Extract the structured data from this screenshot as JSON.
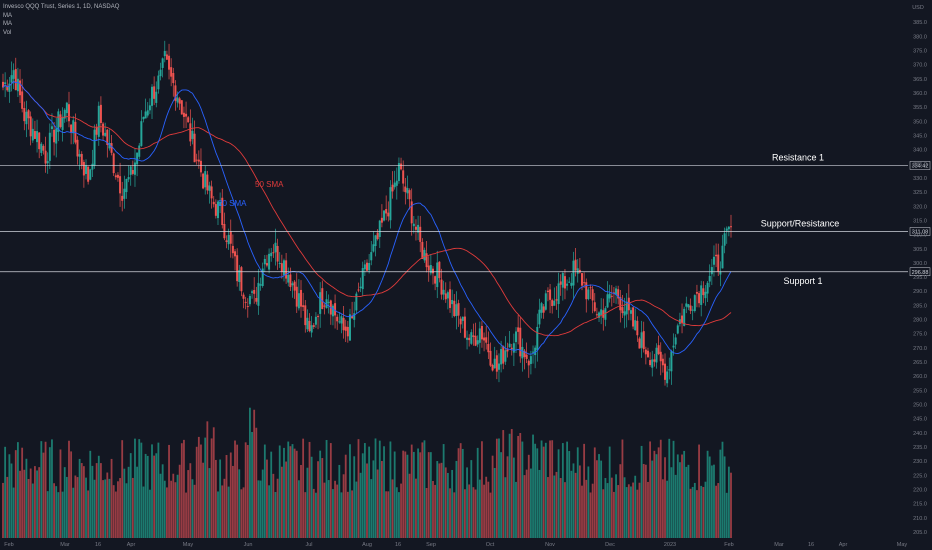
{
  "legend": {
    "title": "Invesco QQQ Trust, Series 1, 1D, NASDAQ",
    "indicators": [
      "MA",
      "MA",
      "Vol"
    ]
  },
  "currency": "USD",
  "colors": {
    "background": "#131722",
    "up": "#26a69a",
    "down": "#ef5350",
    "vol_up": "#1e8c7c",
    "vol_down": "#b0434a",
    "sma20": "#2962ff",
    "sma50": "#e03b3b",
    "level_line": "#d1d4dc",
    "axis_text": "#787b86"
  },
  "chart_data": {
    "type": "candlestick",
    "ylim": [
      205,
      390
    ],
    "y_ticks": [
      205,
      210,
      215,
      220,
      225,
      230,
      235,
      240,
      245,
      250,
      255,
      260,
      265,
      270,
      275,
      280,
      285,
      290,
      295,
      300,
      305,
      310,
      315,
      320,
      325,
      330,
      335,
      340,
      345,
      350,
      355,
      360,
      365,
      370,
      375,
      380,
      385
    ],
    "x_ticks": [
      "Feb",
      "Mar",
      "16",
      "Apr",
      "May",
      "Jun",
      "Jul",
      "Aug",
      "16",
      "Sep",
      "Oct",
      "Nov",
      "Dec",
      "2023",
      "Feb",
      "Mar",
      "16",
      "Apr",
      "May"
    ],
    "levels": [
      {
        "label": "Resistance 1",
        "price": 334.42,
        "tag": "334.42"
      },
      {
        "label": "Support/Resistance",
        "price": 311.08,
        "tag": "311.08"
      },
      {
        "label": "Support 1",
        "price": 296.88,
        "tag": "296.88"
      }
    ],
    "series_labels": [
      {
        "name": "50 SMA",
        "color_key": "sma50"
      },
      {
        "name": "20 SMA",
        "color_key": "sma20"
      }
    ],
    "close_path": [
      [
        0,
        362
      ],
      [
        5,
        368
      ],
      [
        10,
        352
      ],
      [
        16,
        345
      ],
      [
        20,
        338
      ],
      [
        25,
        348
      ],
      [
        30,
        355
      ],
      [
        35,
        340
      ],
      [
        40,
        330
      ],
      [
        45,
        352
      ],
      [
        48,
        345
      ],
      [
        52,
        335
      ],
      [
        56,
        326
      ],
      [
        60,
        330
      ],
      [
        64,
        342
      ],
      [
        66,
        352
      ],
      [
        70,
        360
      ],
      [
        74,
        365
      ],
      [
        76,
        371
      ],
      [
        78,
        366
      ],
      [
        82,
        360
      ],
      [
        86,
        350
      ],
      [
        90,
        340
      ],
      [
        94,
        330
      ],
      [
        98,
        322
      ],
      [
        102,
        318
      ],
      [
        106,
        308
      ],
      [
        110,
        296
      ],
      [
        114,
        290
      ],
      [
        118,
        286
      ],
      [
        122,
        300
      ],
      [
        126,
        306
      ],
      [
        130,
        303
      ],
      [
        135,
        295
      ],
      [
        140,
        285
      ],
      [
        144,
        274
      ],
      [
        148,
        285
      ],
      [
        152,
        290
      ],
      [
        156,
        282
      ],
      [
        160,
        276
      ],
      [
        164,
        279
      ],
      [
        168,
        292
      ],
      [
        172,
        300
      ],
      [
        176,
        308
      ],
      [
        180,
        318
      ],
      [
        184,
        327
      ],
      [
        186,
        333
      ],
      [
        188,
        328
      ],
      [
        192,
        318
      ],
      [
        196,
        306
      ],
      [
        200,
        300
      ],
      [
        204,
        296
      ],
      [
        208,
        290
      ],
      [
        212,
        283
      ],
      [
        216,
        278
      ],
      [
        220,
        272
      ],
      [
        224,
        277
      ],
      [
        228,
        270
      ],
      [
        232,
        262
      ],
      [
        236,
        270
      ],
      [
        240,
        275
      ],
      [
        244,
        270
      ],
      [
        248,
        265
      ],
      [
        252,
        280
      ],
      [
        256,
        287
      ],
      [
        260,
        290
      ],
      [
        264,
        293
      ],
      [
        268,
        297
      ],
      [
        272,
        294
      ],
      [
        276,
        287
      ],
      [
        280,
        282
      ],
      [
        284,
        286
      ],
      [
        288,
        290
      ],
      [
        292,
        284
      ],
      [
        296,
        278
      ],
      [
        300,
        272
      ],
      [
        304,
        268
      ],
      [
        308,
        265
      ],
      [
        312,
        262
      ],
      [
        316,
        276
      ],
      [
        320,
        283
      ],
      [
        324,
        288
      ],
      [
        328,
        291
      ],
      [
        332,
        296
      ],
      [
        336,
        300
      ],
      [
        338,
        303
      ],
      [
        340,
        309
      ],
      [
        342,
        312
      ]
    ],
    "volume_profile": "daily volume bars, scale arbitrary (no labeled volume axis)"
  }
}
